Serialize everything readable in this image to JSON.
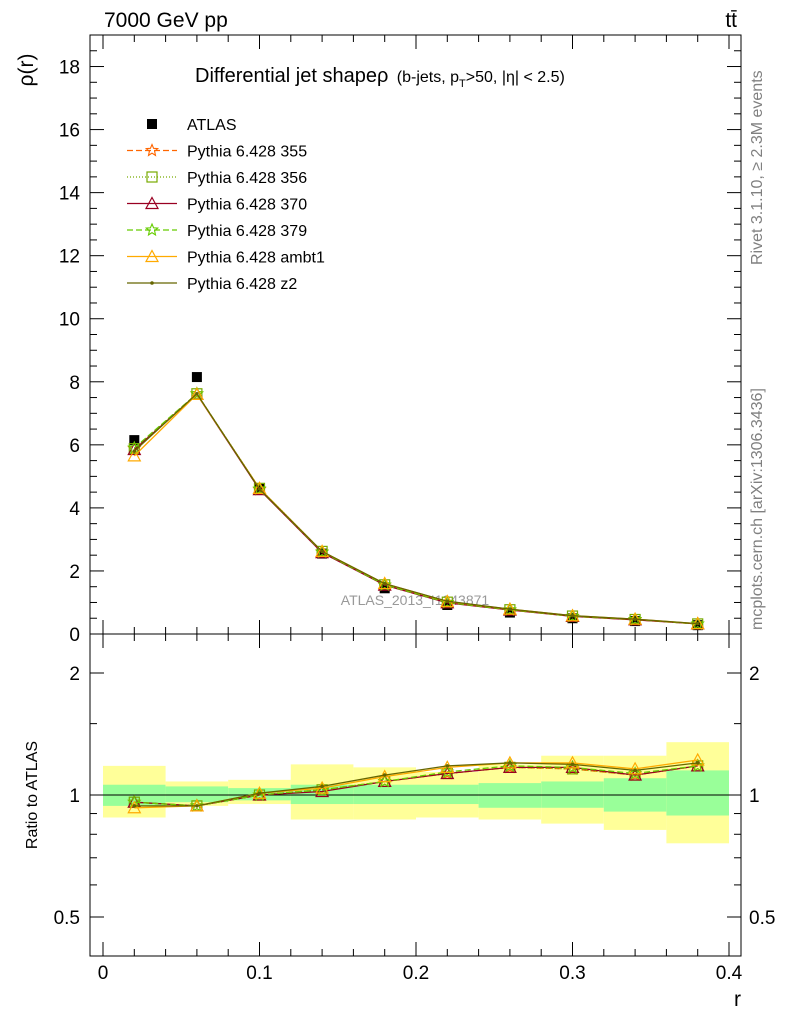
{
  "header": {
    "energy": "7000 GeV pp",
    "process": "tt̄"
  },
  "side_labels": {
    "rivet": "Rivet 3.1.10, ≥ 2.3M events",
    "source": "mcplots.cern.ch [arXiv:1306.3436]"
  },
  "chart_data": [
    {
      "panel": "main",
      "type": "line",
      "title": "Differential jet shape ρ (b-jets, p_T>50, |η| < 2.5)",
      "title_parts": {
        "main": "Differential jet shapeρ",
        "sub_pre": "(b-jets, p",
        "sub_sub": "T",
        "sub_post": ">50, |η| < 2.5)"
      },
      "ylabel": "ρ(r)",
      "xlabel": "r",
      "watermark": "ATLAS_2013_I1243871",
      "xlim": [
        0,
        0.4
      ],
      "ylim": [
        0,
        19
      ],
      "xticks": [
        0,
        0.1,
        0.2,
        0.3,
        0.4
      ],
      "xtick_labels": [
        "0",
        "0.1",
        "0.2",
        "0.3",
        "0.4"
      ],
      "yticks": [
        0,
        2,
        4,
        6,
        8,
        10,
        12,
        14,
        16,
        18
      ],
      "ytick_labels": [
        "0",
        "2",
        "4",
        "6",
        "8",
        "10",
        "12",
        "14",
        "16",
        "18"
      ],
      "legend_position": "top-left",
      "x": [
        0.02,
        0.06,
        0.1,
        0.14,
        0.18,
        0.22,
        0.26,
        0.3,
        0.34,
        0.38
      ],
      "series": [
        {
          "name": "ATLAS",
          "color": "#000000",
          "marker": "square",
          "dash": "none",
          "values": [
            6.15,
            8.15,
            4.6,
            2.55,
            1.45,
            0.92,
            0.68,
            0.5,
            0.41,
            0.28
          ]
        },
        {
          "name": "Pythia 6.428 355",
          "color": "#ff6600",
          "marker": "star",
          "dash": "6,3",
          "values": [
            5.88,
            7.62,
            4.58,
            2.6,
            1.55,
            1.0,
            0.76,
            0.56,
            0.45,
            0.32
          ]
        },
        {
          "name": "Pythia 6.428 356",
          "color": "#77aa00",
          "marker": "open-square",
          "dash": "1,2",
          "values": [
            5.88,
            7.62,
            4.62,
            2.62,
            1.56,
            1.01,
            0.77,
            0.57,
            0.46,
            0.32
          ]
        },
        {
          "name": "Pythia 6.428 370",
          "color": "#990022",
          "marker": "open-triangle",
          "dash": "none",
          "values": [
            5.85,
            7.6,
            4.58,
            2.58,
            1.55,
            0.99,
            0.76,
            0.56,
            0.45,
            0.32
          ]
        },
        {
          "name": "Pythia 6.428 379",
          "color": "#66cc00",
          "marker": "star",
          "dash": "6,3",
          "values": [
            5.9,
            7.62,
            4.6,
            2.6,
            1.56,
            1.0,
            0.77,
            0.56,
            0.46,
            0.32
          ]
        },
        {
          "name": "Pythia 6.428 ambt1",
          "color": "#ffaa00",
          "marker": "open-triangle",
          "dash": "none",
          "values": [
            5.65,
            7.6,
            4.62,
            2.62,
            1.6,
            1.03,
            0.79,
            0.58,
            0.47,
            0.33
          ]
        },
        {
          "name": "Pythia 6.428 z2",
          "color": "#666600",
          "marker": "dot",
          "dash": "none",
          "values": [
            5.8,
            7.62,
            4.6,
            2.62,
            1.6,
            1.04,
            0.79,
            0.58,
            0.47,
            0.33
          ]
        }
      ]
    },
    {
      "panel": "ratio",
      "type": "line",
      "ylabel": "Ratio to ATLAS",
      "xlabel": "r",
      "xlim": [
        0,
        0.4
      ],
      "ylim": [
        0.4,
        2.4
      ],
      "log_y": true,
      "yticks": [
        0.5,
        1,
        2
      ],
      "ytick_labels": [
        "0.5",
        "1",
        "2"
      ],
      "x": [
        0.02,
        0.06,
        0.1,
        0.14,
        0.18,
        0.22,
        0.26,
        0.3,
        0.34,
        0.38
      ],
      "bin_edges": [
        0,
        0.04,
        0.08,
        0.12,
        0.16,
        0.2,
        0.24,
        0.28,
        0.32,
        0.36,
        0.4
      ],
      "band_stat": {
        "color": "#99ff99",
        "low": [
          0.94,
          0.96,
          0.97,
          0.95,
          0.95,
          0.95,
          0.93,
          0.93,
          0.91,
          0.89
        ],
        "high": [
          1.06,
          1.05,
          1.04,
          1.06,
          1.06,
          1.06,
          1.07,
          1.08,
          1.1,
          1.15
        ]
      },
      "band_total": {
        "color": "#ffff99",
        "low": [
          0.88,
          0.94,
          0.95,
          0.87,
          0.87,
          0.88,
          0.87,
          0.85,
          0.82,
          0.76
        ],
        "high": [
          1.18,
          1.08,
          1.09,
          1.19,
          1.17,
          1.14,
          1.19,
          1.25,
          1.25,
          1.35
        ]
      },
      "series": [
        {
          "name": "Pythia 6.428 355",
          "color": "#ff6600",
          "marker": "star",
          "dash": "6,3",
          "values": [
            0.96,
            0.94,
            1.0,
            1.03,
            1.08,
            1.13,
            1.17,
            1.16,
            1.12,
            1.18
          ]
        },
        {
          "name": "Pythia 6.428 356",
          "color": "#77aa00",
          "marker": "open-square",
          "dash": "1,2",
          "values": [
            0.96,
            0.94,
            1.0,
            1.03,
            1.08,
            1.13,
            1.17,
            1.16,
            1.12,
            1.18
          ]
        },
        {
          "name": "Pythia 6.428 370",
          "color": "#990022",
          "marker": "open-triangle",
          "dash": "none",
          "values": [
            0.96,
            0.94,
            1.0,
            1.02,
            1.08,
            1.13,
            1.17,
            1.17,
            1.12,
            1.18
          ]
        },
        {
          "name": "Pythia 6.428 379",
          "color": "#66cc00",
          "marker": "star",
          "dash": "6,3",
          "values": [
            0.96,
            0.94,
            1.0,
            1.03,
            1.08,
            1.14,
            1.18,
            1.17,
            1.13,
            1.18
          ]
        },
        {
          "name": "Pythia 6.428 ambt1",
          "color": "#ffaa00",
          "marker": "open-triangle",
          "dash": "none",
          "values": [
            0.93,
            0.94,
            1.01,
            1.04,
            1.11,
            1.17,
            1.2,
            1.2,
            1.16,
            1.22
          ]
        },
        {
          "name": "Pythia 6.428 z2",
          "color": "#666600",
          "marker": "dot",
          "dash": "none",
          "values": [
            0.94,
            0.94,
            1.01,
            1.05,
            1.12,
            1.18,
            1.2,
            1.19,
            1.15,
            1.2
          ]
        }
      ]
    }
  ]
}
